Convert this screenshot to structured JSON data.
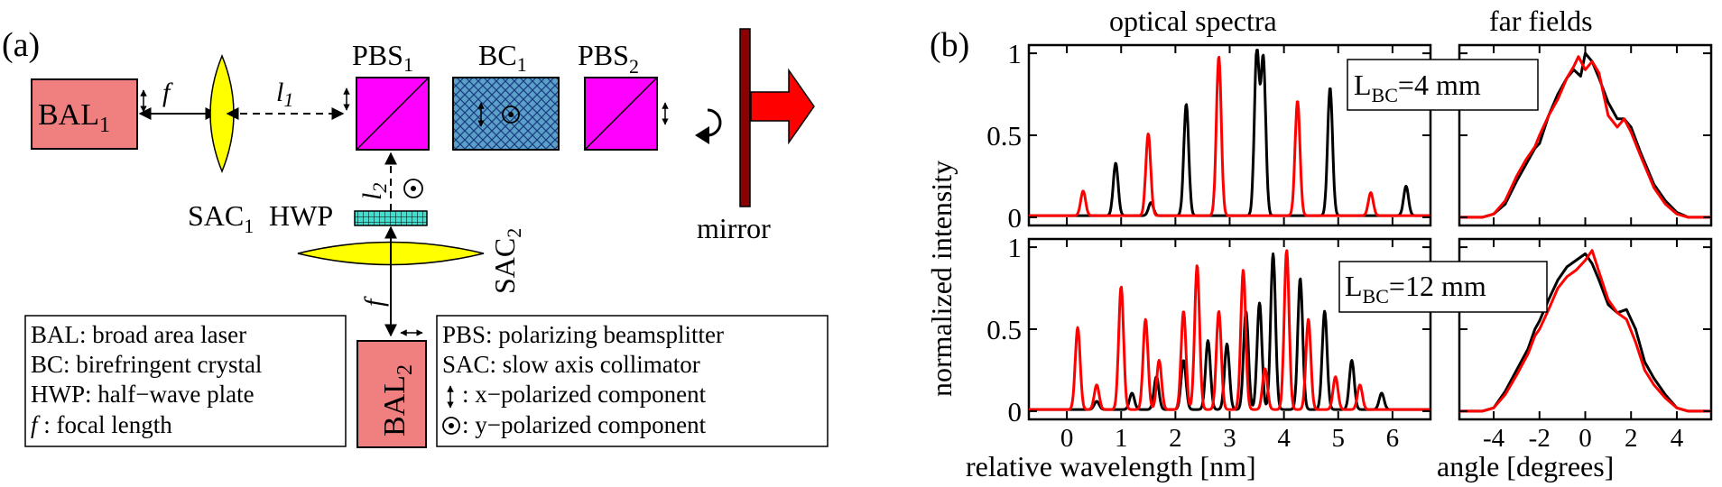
{
  "panel_a": {
    "label": "(a)",
    "bal1": "BAL",
    "bal1_sub": "1",
    "bal2": "BAL",
    "bal2_sub": "2",
    "f_top": "f",
    "f_bottom": "f",
    "l1": "l",
    "l1_sub": "1",
    "l2": "l",
    "l2_sub": "2",
    "sac1": "SAC",
    "sac1_sub": "1",
    "sac2": "SAC",
    "sac2_sub": "2",
    "hwp": "HWP",
    "pbs1": "PBS",
    "pbs1_sub": "1",
    "bc1": "BC",
    "bc1_sub": "1",
    "pbs2": "PBS",
    "pbs2_sub": "2",
    "mirror": "mirror",
    "legend_left": [
      "BAL: broad area laser",
      "BC: birefringent crystal",
      "HWP: half−wave plate"
    ],
    "legend_left_f": " : focal length",
    "legend_right": [
      "PBS: polarizing beamsplitter",
      "SAC: slow axis collimator"
    ],
    "legend_right_x": ": x−polarized component",
    "legend_right_y": ": y−polarized component",
    "colors": {
      "laser": "#f08080",
      "pbs": "#ff00ff",
      "bc": "#5aa0c8",
      "lens": "#ffff00",
      "hwp": "#40e0d0",
      "mirror": "#8b0000",
      "arrow": "#ff0000"
    }
  },
  "panel_b": {
    "label": "(b)",
    "title_spectra": "optical spectra",
    "title_far": "far fields",
    "ylabel": "normalized  intensity",
    "xlabel_spectra": "relative wavelength  [nm]",
    "xlabel_far": "angle  [degrees]",
    "box_top": "L",
    "box_top_sub": "BC",
    "box_top_val": "=4 mm",
    "box_bottom": "L",
    "box_bottom_sub": "BC",
    "box_bottom_val": "=12 mm",
    "y_ticks": [
      "0",
      "0.5",
      "1"
    ],
    "x_ticks_spectra": [
      "0",
      "1",
      "2",
      "3",
      "4",
      "5",
      "6"
    ],
    "x_ticks_far": [
      "-4",
      "-2",
      "0",
      "2",
      "4"
    ],
    "series_colors": {
      "black": "#000000",
      "red": "#ff0000"
    }
  },
  "chart_data": [
    {
      "type": "line",
      "title": "optical spectra",
      "annotation": "L_BC=4 mm",
      "xlabel": "",
      "ylabel": "normalized  intensity",
      "xlim": [
        -0.7,
        6.7
      ],
      "ylim": [
        -0.05,
        1.05
      ],
      "series": [
        {
          "color": "black",
          "peaks": [
            [
              0.9,
              0.32
            ],
            [
              1.55,
              0.08
            ],
            [
              2.2,
              0.68
            ],
            [
              3.5,
              1.0
            ],
            [
              3.62,
              0.95
            ],
            [
              4.85,
              0.78
            ],
            [
              6.25,
              0.18
            ]
          ]
        },
        {
          "color": "red",
          "peaks": [
            [
              0.3,
              0.15
            ],
            [
              1.5,
              0.5
            ],
            [
              2.8,
              0.97
            ],
            [
              4.25,
              0.7
            ],
            [
              5.6,
              0.14
            ]
          ]
        }
      ]
    },
    {
      "type": "line",
      "title": "far fields",
      "annotation": "",
      "xlabel": "",
      "xlim": [
        -5.5,
        5.5
      ],
      "ylim": [
        -0.05,
        1.05
      ],
      "series": [
        {
          "color": "black",
          "x": [
            -5.5,
            -4.5,
            -4,
            -3.5,
            -3,
            -2.6,
            -2.2,
            -2,
            -1.6,
            -1.2,
            -0.8,
            -0.5,
            -0.2,
            0,
            0.3,
            0.6,
            1,
            1.4,
            1.7,
            2,
            2.4,
            3,
            3.5,
            4,
            4.5,
            5.5
          ],
          "y": [
            0,
            0,
            0.02,
            0.08,
            0.22,
            0.32,
            0.42,
            0.45,
            0.62,
            0.75,
            0.85,
            0.9,
            0.86,
            1.0,
            0.95,
            0.85,
            0.7,
            0.6,
            0.6,
            0.55,
            0.4,
            0.2,
            0.1,
            0.03,
            0,
            0
          ]
        },
        {
          "color": "red",
          "x": [
            -5.5,
            -4.5,
            -4,
            -3.5,
            -3,
            -2.6,
            -2.2,
            -2,
            -1.6,
            -1.2,
            -0.8,
            -0.5,
            -0.3,
            0,
            0.3,
            0.6,
            1,
            1.4,
            1.7,
            2,
            2.4,
            3,
            3.5,
            4,
            4.5,
            5.5
          ],
          "y": [
            0,
            0,
            0.02,
            0.1,
            0.25,
            0.35,
            0.43,
            0.5,
            0.62,
            0.72,
            0.85,
            0.92,
            0.98,
            0.9,
            0.95,
            0.88,
            0.62,
            0.55,
            0.6,
            0.52,
            0.38,
            0.18,
            0.08,
            0.02,
            0,
            0
          ]
        }
      ]
    },
    {
      "type": "line",
      "title": "",
      "annotation": "L_BC=12 mm",
      "xlabel": "relative wavelength  [nm]",
      "ylabel": "normalized  intensity",
      "xlim": [
        -0.7,
        6.7
      ],
      "ylim": [
        -0.05,
        1.05
      ],
      "series": [
        {
          "color": "black",
          "peaks": [
            [
              0.55,
              0.05
            ],
            [
              1.2,
              0.1
            ],
            [
              1.65,
              0.2
            ],
            [
              2.15,
              0.3
            ],
            [
              2.6,
              0.42
            ],
            [
              2.95,
              0.4
            ],
            [
              3.3,
              0.6
            ],
            [
              3.55,
              0.65
            ],
            [
              3.8,
              0.95
            ],
            [
              4.3,
              0.8
            ],
            [
              4.75,
              0.6
            ],
            [
              5.25,
              0.3
            ],
            [
              5.8,
              0.1
            ]
          ]
        },
        {
          "color": "red",
          "peaks": [
            [
              0.2,
              0.5
            ],
            [
              0.55,
              0.15
            ],
            [
              1.0,
              0.75
            ],
            [
              1.45,
              0.55
            ],
            [
              1.7,
              0.3
            ],
            [
              2.15,
              0.6
            ],
            [
              2.4,
              0.88
            ],
            [
              2.8,
              0.6
            ],
            [
              3.25,
              0.85
            ],
            [
              3.65,
              0.25
            ],
            [
              4.05,
              0.97
            ],
            [
              4.45,
              0.55
            ],
            [
              4.95,
              0.2
            ],
            [
              5.4,
              0.15
            ]
          ]
        }
      ]
    },
    {
      "type": "line",
      "title": "",
      "annotation": "",
      "xlabel": "angle  [degrees]",
      "xlim": [
        -5.5,
        5.5
      ],
      "ylim": [
        -0.05,
        1.05
      ],
      "series": [
        {
          "color": "black",
          "x": [
            -5.5,
            -4.5,
            -4,
            -3.5,
            -3,
            -2.5,
            -2.2,
            -2,
            -1.6,
            -1.2,
            -0.8,
            -0.4,
            0,
            0.3,
            0.6,
            1,
            1.4,
            1.8,
            2.2,
            2.6,
            3,
            3.5,
            4,
            4.5,
            5.5
          ],
          "y": [
            0,
            0,
            0.02,
            0.12,
            0.25,
            0.38,
            0.5,
            0.55,
            0.68,
            0.8,
            0.88,
            0.92,
            0.96,
            0.9,
            0.8,
            0.65,
            0.6,
            0.62,
            0.5,
            0.3,
            0.2,
            0.1,
            0.02,
            0,
            0
          ]
        },
        {
          "color": "red",
          "x": [
            -5.5,
            -4.5,
            -4,
            -3.5,
            -3,
            -2.5,
            -2.2,
            -2,
            -1.6,
            -1.2,
            -0.8,
            -0.4,
            0,
            0.3,
            0.6,
            1,
            1.4,
            1.8,
            2.2,
            2.6,
            3,
            3.5,
            4,
            4.5,
            5.5
          ],
          "y": [
            0,
            0,
            0.02,
            0.1,
            0.22,
            0.35,
            0.46,
            0.5,
            0.62,
            0.75,
            0.82,
            0.86,
            0.92,
            0.98,
            0.85,
            0.68,
            0.6,
            0.56,
            0.42,
            0.25,
            0.16,
            0.08,
            0.02,
            0,
            0
          ]
        }
      ]
    }
  ]
}
